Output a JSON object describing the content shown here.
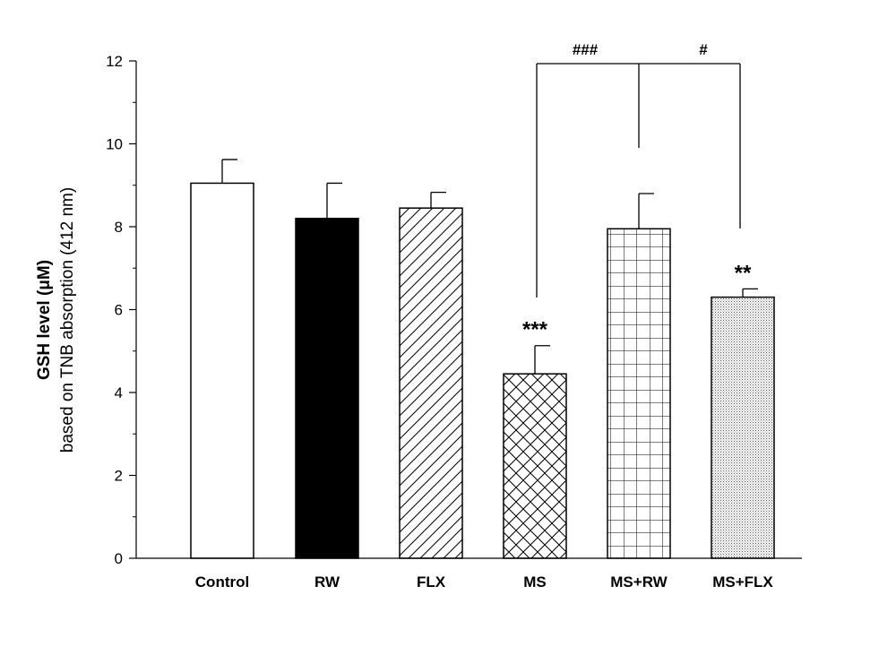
{
  "chart_data": {
    "type": "bar",
    "categories": [
      "Control",
      "RW",
      "FLX",
      "MS",
      "MS+RW",
      "MS+FLX"
    ],
    "values": [
      9.05,
      8.2,
      8.45,
      4.45,
      7.95,
      6.3
    ],
    "errors": [
      0.57,
      0.85,
      0.38,
      0.68,
      0.85,
      0.2
    ],
    "fills": [
      "white",
      "solid-black",
      "diagonal-hatch",
      "cross-hatch",
      "grid",
      "dots"
    ],
    "ylabel_line1": "GSH level (μM)",
    "ylabel_line2": "based on TNB absorption (412 nm)",
    "xlabel": "",
    "ylim": [
      0,
      12
    ],
    "yticks": [
      "0",
      "2",
      "4",
      "6",
      "8",
      "10",
      "12"
    ],
    "bar_annotations": [
      {
        "category": "MS",
        "text": "***"
      },
      {
        "category": "MS+FLX",
        "text": "**"
      }
    ],
    "brackets": [
      {
        "from": "MS",
        "to": "MS+RW",
        "text": "###"
      },
      {
        "from": "MS+RW",
        "to": "MS+FLX",
        "text": "#"
      }
    ],
    "grid": false,
    "legend": "none"
  }
}
